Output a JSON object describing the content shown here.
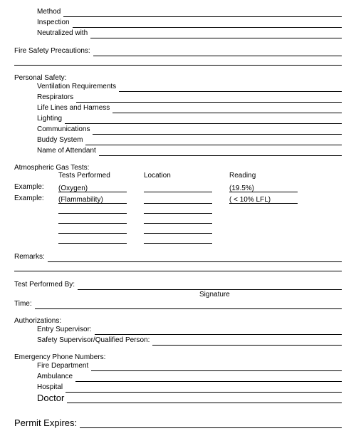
{
  "topFields": {
    "method": "Method",
    "inspection": "Inspection",
    "neutralized": "Neutralized with"
  },
  "fireSafety": "Fire Safety Precautions:",
  "personalSafety": {
    "header": "Personal Safety:",
    "ventilation": "Ventilation Requirements",
    "respirators": "Respirators",
    "lifeLines": "Life Lines and Harness",
    "lighting": "Lighting",
    "communications": "Communications",
    "buddy": "Buddy System",
    "attendant": "Name of Attendant"
  },
  "gasTests": {
    "header": "Atmospheric Gas Tests:",
    "col1": "Tests Performed",
    "col2": "Location",
    "col3": "Reading",
    "exampleLabel": "Example:",
    "ex1_test": "(Oxygen)",
    "ex1_read": "(19.5%)",
    "ex2_test": "(Flammability)",
    "ex2_read": "( < 10% LFL)"
  },
  "remarks": "Remarks:",
  "testPerformedBy": "Test Performed By:",
  "signature": "Signature",
  "time": "Time:",
  "auth": {
    "header": "Authorizations:",
    "entry": "Entry Supervisor:",
    "safety": "Safety Supervisor/Qualified Person:"
  },
  "emergency": {
    "header": "Emergency Phone Numbers:",
    "fire": "Fire Department",
    "ambulance": "Ambulance",
    "hospital": "Hospital",
    "doctor": "Doctor"
  },
  "permitExpires": "Permit Expires:"
}
